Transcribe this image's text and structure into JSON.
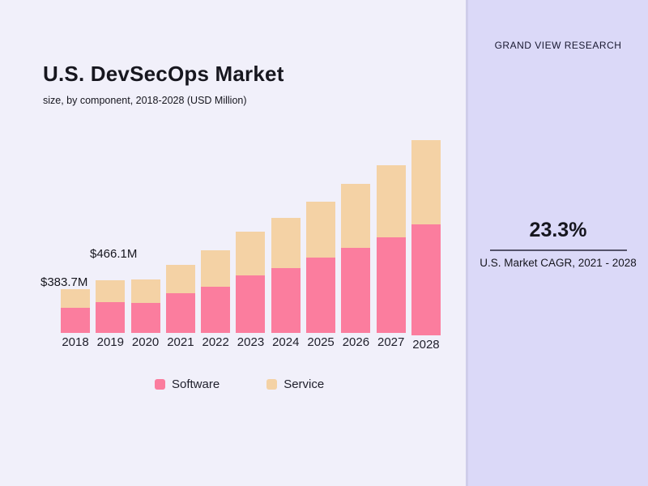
{
  "chart_data": {
    "type": "bar",
    "stacked": true,
    "title": "U.S. DevSecOps Market",
    "subtitle": "size, by component, 2018-2028 (USD Million)",
    "unit": "USD Million",
    "categories": [
      "2018",
      "2019",
      "2020",
      "2021",
      "2022",
      "2023",
      "2024",
      "2025",
      "2026",
      "2027",
      "2028"
    ],
    "series": [
      {
        "name": "Software",
        "color": "#FB7D9E",
        "values": [
          221,
          269,
          262,
          347,
          407,
          502,
          573,
          663,
          746,
          841,
          976
        ]
      },
      {
        "name": "Service",
        "color": "#F4D2A5",
        "values": [
          163,
          197,
          211,
          254,
          317,
          386,
          437,
          489,
          567,
          631,
          742
        ]
      }
    ],
    "totals": [
      383.7,
      466.1,
      473,
      601,
      724,
      888,
      1010,
      1152,
      1313,
      1472,
      1718
    ],
    "annotations": [
      {
        "category": "2018",
        "label": "$383.7M"
      },
      {
        "category": "2019",
        "label": "$466.1M"
      }
    ],
    "legend_position": "bottom",
    "grid": false,
    "y_axis_visible": false,
    "ylim": [
      0,
      1800
    ]
  },
  "sidebar": {
    "brand": "GRAND VIEW RESEARCH",
    "cagr_value": "23.3%",
    "cagr_label": "U.S. Market CAGR, 2021 - 2028"
  },
  "colors": {
    "main_background": "#F1F0FA",
    "sidebar_background": "#DBD9F8",
    "software": "#FB7D9E",
    "service": "#F4D2A5",
    "text_dark": "#16161E"
  }
}
